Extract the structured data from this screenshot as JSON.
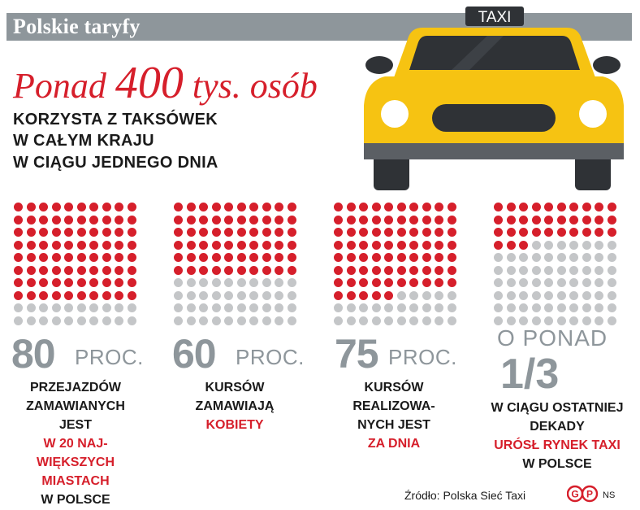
{
  "title": "Polskie taryfy",
  "headline": {
    "prefix": "Ponad ",
    "number": "400",
    "suffix": " tys. osób"
  },
  "subtitle_lines": [
    "KORZYSTA Z TAKSÓWEK",
    "W CAŁYM KRAJU",
    "W CIĄGU JEDNEGO DNIA"
  ],
  "taxi_sign": "TAXI",
  "colors": {
    "red": "#d61f2b",
    "gray_dot": "#c4c6c8",
    "gray_text": "#8e969b",
    "taxi_yellow": "#f6c312",
    "dark": "#2f3236"
  },
  "chart_data": [
    {
      "type": "dot-matrix",
      "total": 100,
      "highlighted": 80,
      "value_label": "80",
      "unit": "PROC.",
      "lines": [
        {
          "text": "PRZEJAZDÓW",
          "red": false
        },
        {
          "text": "ZAMAWIANYCH",
          "red": false
        },
        {
          "text": "JEST",
          "red": false
        },
        {
          "text": "W 20 NAJ-",
          "red": true
        },
        {
          "text": "WIĘKSZYCH",
          "red": true
        },
        {
          "text": "MIASTACH",
          "red": true
        },
        {
          "text": "W POLSCE",
          "red": false
        }
      ]
    },
    {
      "type": "dot-matrix",
      "total": 100,
      "highlighted": 60,
      "value_label": "60",
      "unit": "PROC.",
      "lines": [
        {
          "text": "KURSÓW",
          "red": false
        },
        {
          "text": "ZAMAWIAJĄ",
          "red": false
        },
        {
          "text": "KOBIETY",
          "red": true
        }
      ]
    },
    {
      "type": "dot-matrix",
      "total": 100,
      "highlighted": 75,
      "value_label": "75",
      "unit": "PROC.",
      "lines": [
        {
          "text": "KURSÓW",
          "red": false
        },
        {
          "text": "REALIZOWA-",
          "red": false
        },
        {
          "text": "NYCH JEST",
          "red": false
        },
        {
          "text": "ZA DNIA",
          "red": true
        }
      ]
    },
    {
      "type": "dot-matrix",
      "total": 100,
      "highlighted": 33,
      "value_prefix": "O PONAD",
      "value_label": "1/3",
      "lines": [
        {
          "text": "W CIĄGU OSTATNIEJ",
          "red": false
        },
        {
          "text": "DEKADY",
          "red": false
        },
        {
          "text": "URÓSŁ RYNEK TAXI",
          "red": true
        },
        {
          "text": "W POLSCE",
          "red": false
        }
      ]
    }
  ],
  "source": "Źródło: Polska Sieć Taxi",
  "credit": "NS"
}
